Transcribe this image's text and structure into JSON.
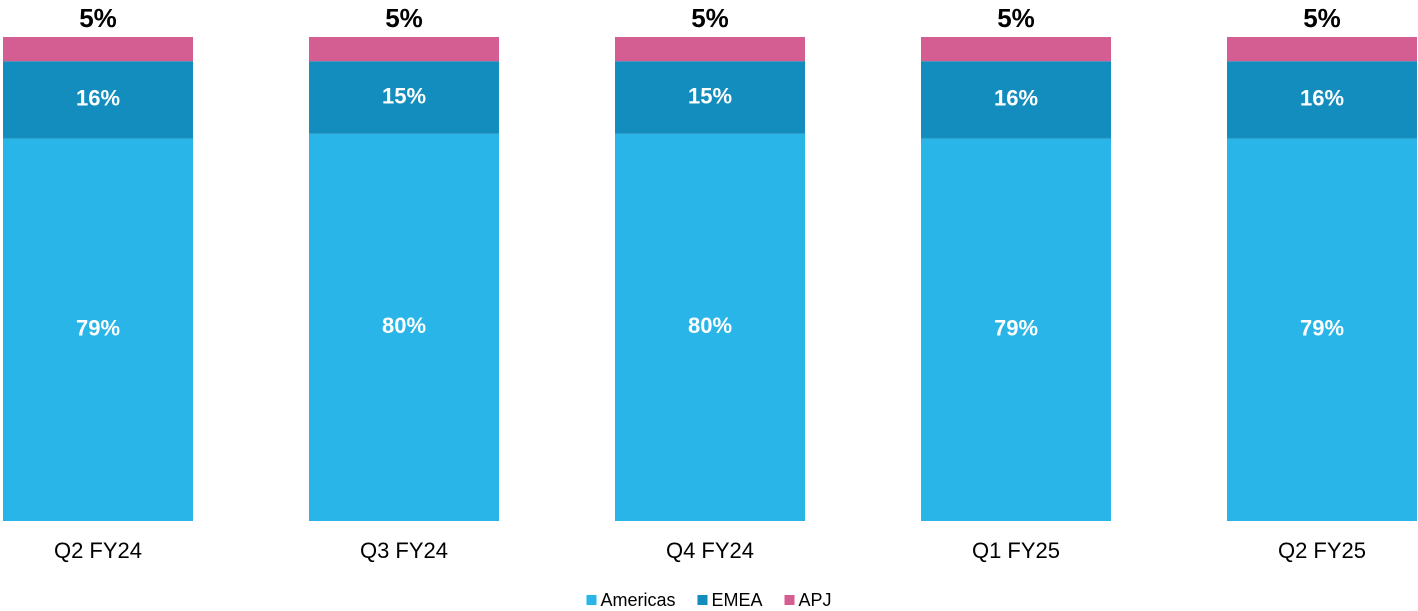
{
  "chart_data": {
    "type": "stacked_bar",
    "categories": [
      "Q2 FY24",
      "Q3 FY24",
      "Q4 FY24",
      "Q1 FY25",
      "Q2 FY25"
    ],
    "series": [
      {
        "name": "Americas",
        "color": "#29b5e8",
        "values": [
          79,
          80,
          80,
          79,
          79
        ],
        "value_labels": [
          "79%",
          "80%",
          "80%",
          "79%",
          "79%"
        ]
      },
      {
        "name": "EMEA",
        "color": "#138dbd",
        "values": [
          16,
          15,
          15,
          16,
          16
        ],
        "value_labels": [
          "16%",
          "15%",
          "15%",
          "16%",
          "16%"
        ]
      },
      {
        "name": "APJ",
        "color": "#d45d91",
        "values": [
          5,
          5,
          5,
          5,
          5
        ],
        "value_labels": [
          "5%",
          "5%",
          "5%",
          "5%",
          "5%"
        ]
      }
    ],
    "legend": "bottom"
  }
}
